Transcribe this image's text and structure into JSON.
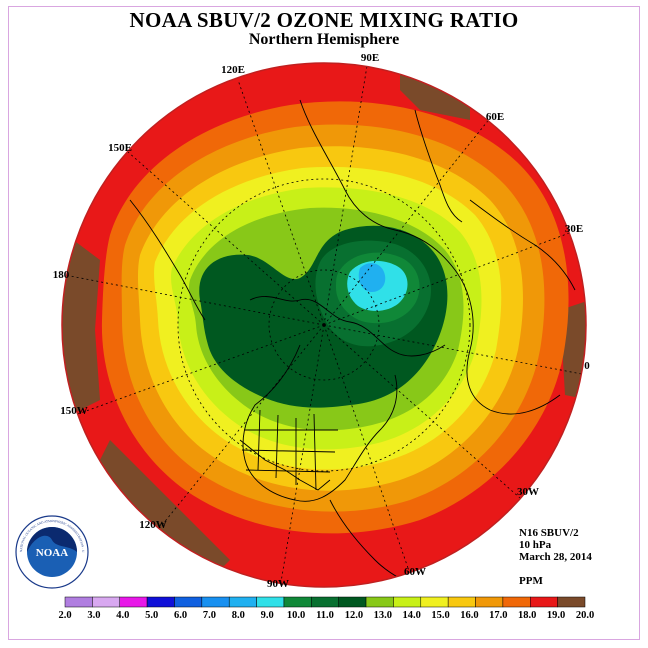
{
  "title": "NOAA SBUV/2 OZONE MIXING RATIO",
  "subtitle": "Northern Hemisphere",
  "longitude_labels": {
    "l90e": "90E",
    "l60e": "60E",
    "l30e": "30E",
    "l0": "0",
    "l30w": "30W",
    "l60w": "60W",
    "l90w": "90W",
    "l120w": "120W",
    "l150w": "150W",
    "l180": "180",
    "l150e": "150E",
    "l120e": "120E"
  },
  "info": {
    "instrument": "N16 SBUV/2",
    "level": "10 hPa",
    "date": "March 28, 2014",
    "units": "PPM"
  },
  "logo": {
    "text": "NOAA",
    "ring_text": "NATIONAL OCEANIC AND ATMOSPHERIC ADMINISTRATION · U.S. DEPARTMENT OF COMMERCE"
  },
  "colorbar": {
    "ticks": [
      "2.0",
      "3.0",
      "4.0",
      "5.0",
      "6.0",
      "7.0",
      "8.0",
      "9.0",
      "10.0",
      "11.0",
      "12.0",
      "13.0",
      "14.0",
      "15.0",
      "16.0",
      "17.0",
      "18.0",
      "19.0",
      "20.0"
    ],
    "colors": [
      "#b07ee0",
      "#d8a8f0",
      "#e818e8",
      "#1010d8",
      "#1060e0",
      "#1890f0",
      "#20b0f0",
      "#30e0e8",
      "#108838",
      "#087030",
      "#005820",
      "#88c818",
      "#c8f018",
      "#f0f020",
      "#f8c810",
      "#f09808",
      "#f06808",
      "#e81818",
      "#7a4a2a"
    ]
  },
  "map_colors": {
    "c19": "#e81818",
    "c18": "#f06808",
    "c17": "#f09808",
    "c16": "#f8c810",
    "c15": "#f0f020",
    "c14": "#c8f018",
    "c13": "#88c818",
    "c12": "#005820",
    "c11": "#087030",
    "c10": "#108838",
    "c9": "#30e0e8",
    "c8": "#20b0f0",
    "c20": "#7a4a2a"
  }
}
